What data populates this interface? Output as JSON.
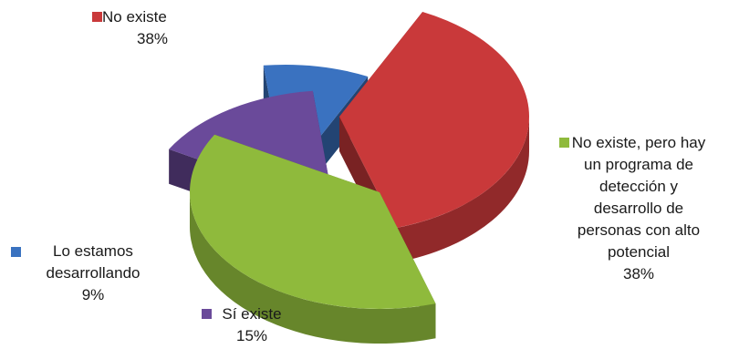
{
  "chart_data": {
    "type": "pie",
    "style": "3d-exploded",
    "slices": [
      {
        "label": "No existe",
        "value": 38,
        "percent_label": "38%",
        "color": "#c9393a",
        "label_lines": [
          "No existe"
        ]
      },
      {
        "label": "No existe, pero hay un programa de detección y desarrollo de personas con alto potencial",
        "value": 38,
        "percent_label": "38%",
        "color": "#8fba3c",
        "label_lines": [
          "No existe, pero hay",
          "un programa de",
          "detección y",
          "desarrollo de",
          "personas con alto",
          "potencial"
        ]
      },
      {
        "label": "Sí existe",
        "value": 15,
        "percent_label": "15%",
        "color": "#6a4a9a",
        "label_lines": [
          "Sí existe"
        ]
      },
      {
        "label": "Lo estamos desarrollando",
        "value": 9,
        "percent_label": "9%",
        "color": "#3a72c0",
        "label_lines": [
          "Lo estamos",
          "desarrollando"
        ]
      }
    ],
    "legend": "none"
  }
}
